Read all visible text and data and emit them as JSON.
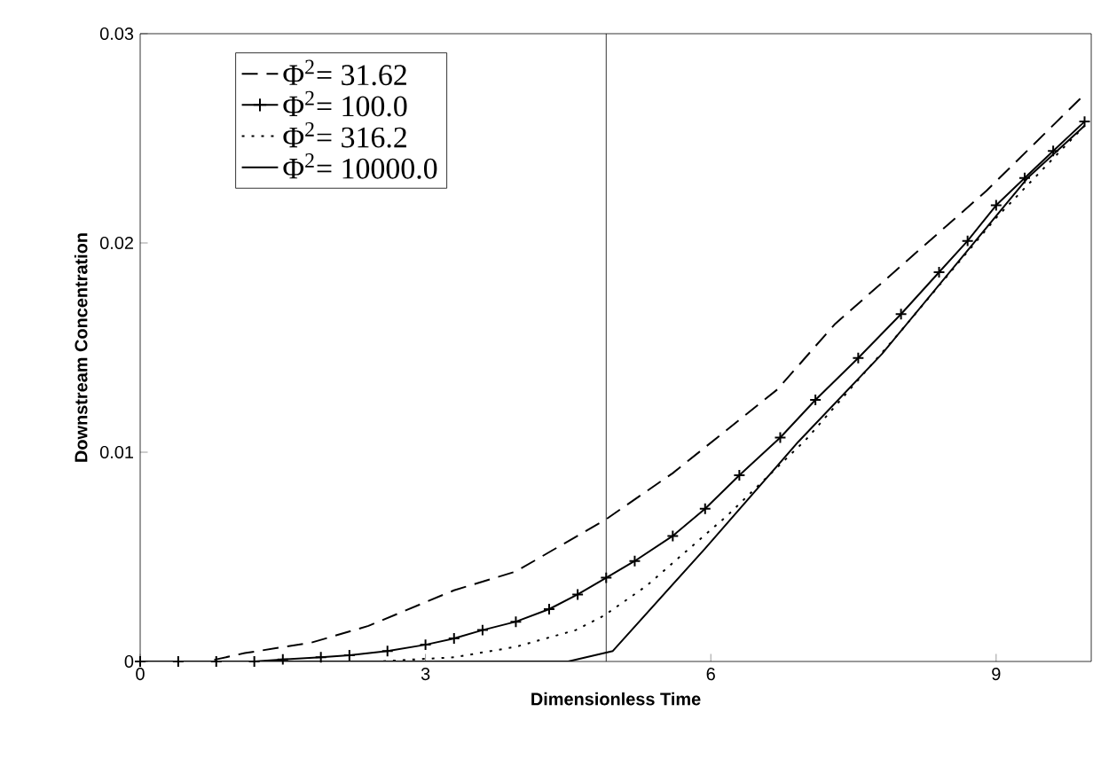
{
  "chart_data": {
    "type": "line",
    "xlabel": "Dimensionless Time",
    "ylabel": "Downstream Concentration",
    "xlim": [
      0,
      10
    ],
    "ylim": [
      0,
      0.03
    ],
    "xticks": [
      0,
      3,
      6,
      9
    ],
    "yticks": [
      0,
      0.01,
      0.02,
      0.03
    ],
    "grid": false,
    "legend": "top left",
    "ref_lines": [
      {
        "axis": "x",
        "value": 4.9,
        "color": "#000000",
        "line_style": "solid"
      }
    ],
    "series": [
      {
        "name": "Φ$^{2}$= 31.62",
        "color": "#000000",
        "line_style": "dashed",
        "marker": "none",
        "x": [
          0,
          0.7,
          1.1,
          1.8,
          2.4,
          3.3,
          3.95,
          4.9,
          5.6,
          6.7,
          7.3,
          8.9,
          9.93
        ],
        "values": [
          0,
          0,
          0.0004,
          0.0009,
          0.0017,
          0.0034,
          0.0043,
          0.0068,
          0.009,
          0.013,
          0.0161,
          0.0225,
          0.0271
        ]
      },
      {
        "name": "Φ$^{2}$= 100.0",
        "color": "#000000",
        "line_style": "solid",
        "marker": "cross",
        "x": [
          0,
          0.4,
          0.8,
          1.2,
          1.5,
          1.9,
          2.2,
          2.6,
          3.0,
          3.3,
          3.6,
          3.95,
          4.3,
          4.6,
          4.9,
          5.2,
          5.6,
          5.94,
          6.3,
          6.73,
          7.1,
          7.55,
          8.0,
          8.4,
          8.7,
          9.0,
          9.3,
          9.6,
          9.93
        ],
        "values": [
          0,
          0,
          0,
          0,
          0.0001,
          0.0002,
          0.0003,
          0.0005,
          0.0008,
          0.0011,
          0.0015,
          0.0019,
          0.0025,
          0.0032,
          0.004,
          0.0048,
          0.006,
          0.0073,
          0.0089,
          0.0107,
          0.0125,
          0.0145,
          0.0166,
          0.0186,
          0.0201,
          0.0218,
          0.0231,
          0.0244,
          0.0258
        ]
      },
      {
        "name": "Φ$^{2}$= 316.2",
        "color": "#000000",
        "line_style": "dotted",
        "marker": "none",
        "x": [
          0,
          2.5,
          3.3,
          3.95,
          4.58,
          4.88,
          5.32,
          6.18,
          7.0,
          8.0,
          9.0,
          9.93
        ],
        "values": [
          0,
          0,
          0.0002,
          0.0007,
          0.0015,
          0.0022,
          0.0036,
          0.007,
          0.0106,
          0.0158,
          0.0212,
          0.0256
        ]
      },
      {
        "name": "Φ$^{2}$= 10000.0",
        "color": "#000000",
        "line_style": "solid",
        "marker": "none",
        "x": [
          0,
          4.5,
          4.97,
          5.94,
          6.92,
          7.8,
          9.33,
          9.93
        ],
        "values": [
          0,
          0,
          0.0005,
          0.0054,
          0.0105,
          0.0147,
          0.0231,
          0.0256
        ]
      }
    ]
  }
}
